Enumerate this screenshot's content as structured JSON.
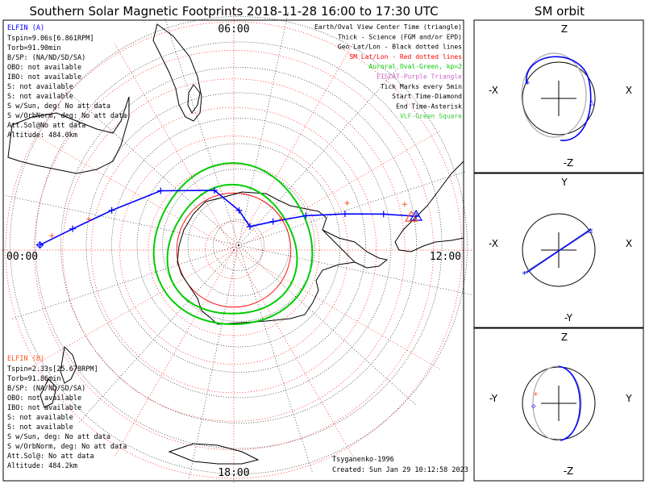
{
  "title": "Southern Solar Magnetic Footprints 2018-11-28 16:00 to 17:30 UTC",
  "orbit_title": "SM orbit",
  "mlt_labels": {
    "top": "06:00",
    "left": "00:00",
    "right": "12:00",
    "bottom": "18:00"
  },
  "legend": [
    {
      "text": "Earth/Oval View Center Time (triangle)",
      "color": "#000000"
    },
    {
      "text": "Thick - Science (FGM and/or EPD)",
      "color": "#000000"
    },
    {
      "text": "Geo Lat/Lon - Black dotted lines",
      "color": "#000000"
    },
    {
      "text": "SM Lat/Lon - Red dotted lines",
      "color": "#ff0000"
    },
    {
      "text": "Auroral Oval-Green, kp=2",
      "color": "#00cc00"
    },
    {
      "text": "EISCAT-Purple Triangle",
      "color": "#cc66cc"
    },
    {
      "text": "Tick Marks every 5min",
      "color": "#000000"
    },
    {
      "text": "Start Time-Diamond",
      "color": "#000000"
    },
    {
      "text": "End Time-Asterisk",
      "color": "#000000"
    },
    {
      "text": "VLF-Green Square",
      "color": "#33cc33"
    }
  ],
  "probe_a": {
    "name": "ELFIN (A)",
    "color": "#0000ff",
    "lines": [
      "Tspin=9.06s[6.861RPM]",
      "Torb=91.90min",
      "B/SP: (NA/ND/SD/SA)",
      "OBO: not available",
      "IBO: not available",
      "S: not available",
      "S: not available",
      "S w/Sun, deg: No att data",
      "S w/OrbNorm, deg: No att data",
      "Att.Sol@No att data",
      "Altitude: 484.0km"
    ]
  },
  "probe_b": {
    "name": "ELFIN (B)",
    "color": "#ff5522",
    "lines": [
      "Tspin=2.33s[25.678RPM]",
      "Torb=91.86min",
      "B/SP: (NA/ND/SD/SA)",
      "OBO: not available",
      "IBO: not available",
      "S: not available",
      "S: not available",
      "S w/Sun, deg: No att data",
      "S w/OrbNorm, deg: No att data",
      "Att.Sol@: No att data",
      "Altitude: 484.2km"
    ]
  },
  "footer": {
    "model": "Tsyganenko-1996",
    "created": "Created: Sun Jan 29 10:12:58 2023"
  },
  "orbit_panels": [
    {
      "top": "Z",
      "bottom": "-Z",
      "left": "-X",
      "right": "X"
    },
    {
      "top": "Y",
      "bottom": "-Y",
      "left": "-X",
      "right": "X"
    },
    {
      "top": "Z",
      "bottom": "-Z",
      "left": "-Y",
      "right": "Y"
    }
  ],
  "colors": {
    "track_a": "#0000ff",
    "track_b": "#ff5522",
    "grid_sm": "#ff0000",
    "oval": "#00cc00",
    "orbit_gray": "#aaaaaa"
  },
  "chart_data": {
    "type": "scatter",
    "title": "Southern Solar Magnetic Footprints 2018-11-28 16:00 to 17:30 UTC",
    "projection": "polar, southern hemisphere",
    "mlt_ticks": [
      "06:00",
      "00:00",
      "12:00",
      "18:00"
    ],
    "sm_lat_rings_deg": [
      -90,
      -80,
      -70,
      -60,
      -50,
      -40,
      -30,
      -20,
      -10
    ],
    "auroral_oval_kp": 2,
    "series": [
      {
        "name": "ELFIN (A)",
        "mlt": [
          0.1,
          0.5,
          1.2,
          2.6,
          4.8,
          6.5,
          8.3,
          9.6,
          10.3,
          10.8,
          11.1,
          11.3
        ],
        "mlat": [
          -22,
          -33,
          -45,
          -57,
          -68,
          -76,
          -80,
          -73,
          -62,
          -49,
          -36,
          -25
        ]
      },
      {
        "name": "ELFIN (B)",
        "mlt": [
          0.3,
          0.8,
          9.8,
          10.5,
          11.0
        ],
        "mlat": [
          -26,
          -38,
          -70,
          -47,
          -28
        ]
      }
    ]
  }
}
